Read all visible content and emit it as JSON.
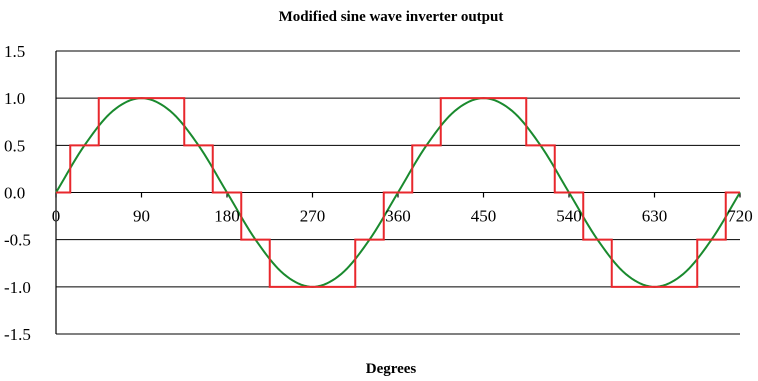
{
  "chart_data": {
    "type": "line",
    "title": "Modified sine wave inverter output",
    "xlabel": "Degrees",
    "ylabel": "",
    "xlim": [
      0,
      720
    ],
    "ylim": [
      -1.5,
      1.5
    ],
    "x_ticks": [
      "0",
      "90",
      "180",
      "270",
      "360",
      "450",
      "540",
      "630",
      "720"
    ],
    "y_ticks": [
      "1.5",
      "1.0",
      "0.5",
      "0.0",
      "-0.5",
      "-1.0",
      "-1.5"
    ],
    "grid": true,
    "legend": "none",
    "series": [
      {
        "kind": "sine",
        "color": "#1a8a2e",
        "x": [
          0,
          30,
          60,
          90,
          120,
          150,
          180,
          210,
          240,
          270,
          300,
          330,
          360,
          390,
          420,
          450,
          480,
          510,
          540,
          570,
          600,
          630,
          660,
          690,
          720
        ],
        "y": [
          0,
          0.5,
          0.866,
          1,
          0.866,
          0.5,
          0,
          -0.5,
          -0.866,
          -1,
          -0.866,
          -0.5,
          0,
          0.5,
          0.866,
          1,
          0.866,
          0.5,
          0,
          -0.5,
          -0.866,
          -1,
          -0.866,
          -0.5,
          0
        ]
      },
      {
        "kind": "step",
        "color": "#e8272c",
        "x": [
          0,
          15,
          15,
          45,
          45,
          135,
          135,
          165,
          165,
          195,
          195,
          225,
          225,
          315,
          315,
          345,
          345,
          375,
          375,
          405,
          405,
          495,
          495,
          525,
          525,
          555,
          555,
          585,
          585,
          675,
          675,
          705,
          705,
          720
        ],
        "y": [
          0,
          0,
          0.5,
          0.5,
          1,
          1,
          0.5,
          0.5,
          0,
          0,
          -0.5,
          -0.5,
          -1,
          -1,
          -0.5,
          -0.5,
          0,
          0,
          0.5,
          0.5,
          1,
          1,
          0.5,
          0.5,
          0,
          0,
          -0.5,
          -0.5,
          -1,
          -1,
          -0.5,
          -0.5,
          0,
          0
        ]
      }
    ]
  }
}
